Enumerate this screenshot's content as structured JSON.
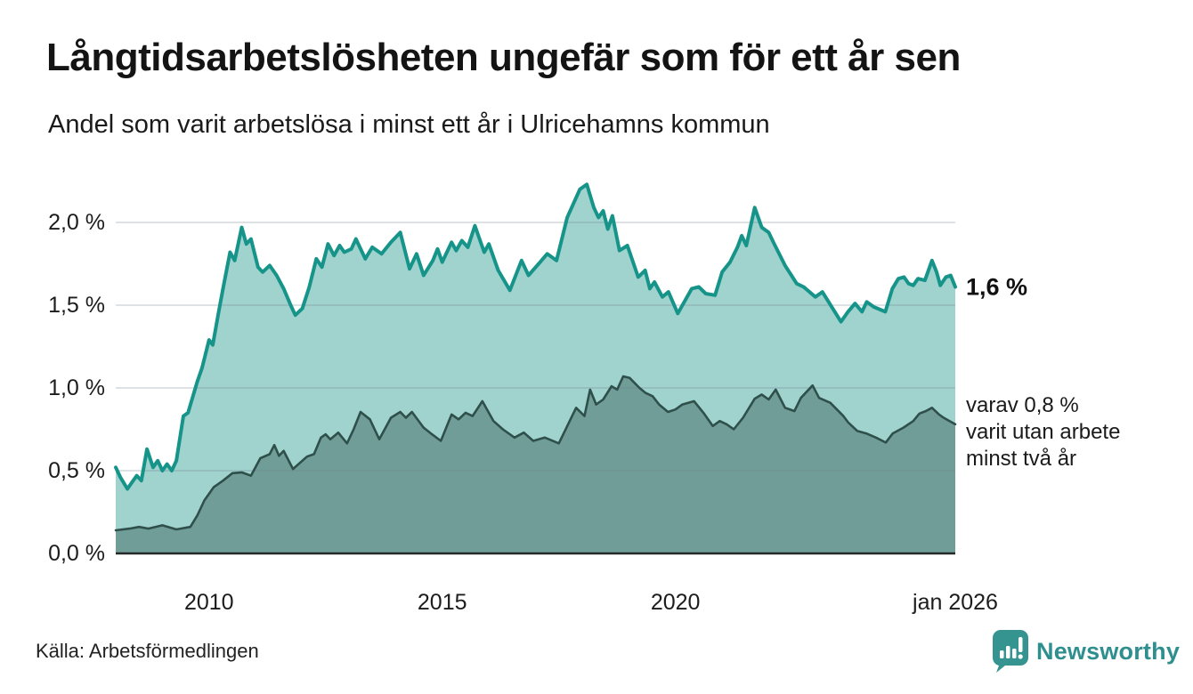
{
  "header": {
    "title": "Långtidsarbetslösheten ungefär som för ett år sen",
    "subtitle": "Andel som varit arbetslösa i minst ett år i Ulricehamns kommun"
  },
  "footer": {
    "source": "Källa: Arbetsförmedlingen",
    "logo_text": "Newsworthy"
  },
  "colors": {
    "accent_teal": "#17948A",
    "fill_light": "#A0D3CD",
    "fill_dark": "#709D98",
    "line_dark": "#2F4F4B",
    "gridline": "rgba(110,125,135,0.22)",
    "baseline": "#252A29",
    "logo_teal": "#2F8F8E"
  },
  "chart_data": {
    "type": "area",
    "title": "Långtidsarbetslösheten ungefär som för ett år sen",
    "subtitle": "Andel som varit arbetslösa i minst ett år i Ulricehamns kommun",
    "unit": "%",
    "xlim": [
      2008.0,
      2026.0
    ],
    "ylim": [
      0,
      2.3
    ],
    "grid": "horizontal",
    "x_ticks": [
      {
        "label": "2010",
        "x": 2010
      },
      {
        "label": "2015",
        "x": 2015
      },
      {
        "label": "2020",
        "x": 2020
      },
      {
        "label": "jan 2026",
        "x": 2026
      }
    ],
    "y_ticks": [
      {
        "label": "0,0 %",
        "value": 0.0
      },
      {
        "label": "0,5 %",
        "value": 0.5
      },
      {
        "label": "1,0 %",
        "value": 1.0
      },
      {
        "label": "1,5 %",
        "value": 1.5
      },
      {
        "label": "2,0 %",
        "value": 2.0
      }
    ],
    "annotations": [
      {
        "text": "1,6 %",
        "x": 2026.25,
        "y": 1.61,
        "style": "value"
      },
      {
        "text": "varav 0,8 %\nvarit utan arbete\nminst två år",
        "x": 2026.2,
        "y": 0.73,
        "style": "note"
      }
    ],
    "series": [
      {
        "name": "Andel arbetslösa minst ett år",
        "end_label": "1,6 %",
        "points": [
          [
            2008.0,
            0.52
          ],
          [
            2008.1,
            0.46
          ],
          [
            2008.25,
            0.39
          ],
          [
            2008.35,
            0.43
          ],
          [
            2008.45,
            0.47
          ],
          [
            2008.55,
            0.44
          ],
          [
            2008.67,
            0.63
          ],
          [
            2008.8,
            0.52
          ],
          [
            2008.9,
            0.56
          ],
          [
            2009.0,
            0.5
          ],
          [
            2009.1,
            0.54
          ],
          [
            2009.2,
            0.5
          ],
          [
            2009.3,
            0.56
          ],
          [
            2009.45,
            0.83
          ],
          [
            2009.55,
            0.85
          ],
          [
            2009.75,
            1.04
          ],
          [
            2009.85,
            1.12
          ],
          [
            2010.0,
            1.29
          ],
          [
            2010.08,
            1.26
          ],
          [
            2010.2,
            1.45
          ],
          [
            2010.3,
            1.6
          ],
          [
            2010.45,
            1.82
          ],
          [
            2010.55,
            1.77
          ],
          [
            2010.7,
            1.97
          ],
          [
            2010.8,
            1.87
          ],
          [
            2010.9,
            1.9
          ],
          [
            2011.05,
            1.73
          ],
          [
            2011.15,
            1.7
          ],
          [
            2011.3,
            1.74
          ],
          [
            2011.45,
            1.68
          ],
          [
            2011.6,
            1.6
          ],
          [
            2011.75,
            1.5
          ],
          [
            2011.85,
            1.44
          ],
          [
            2012.0,
            1.48
          ],
          [
            2012.15,
            1.61
          ],
          [
            2012.3,
            1.78
          ],
          [
            2012.42,
            1.73
          ],
          [
            2012.55,
            1.87
          ],
          [
            2012.68,
            1.8
          ],
          [
            2012.8,
            1.86
          ],
          [
            2012.9,
            1.82
          ],
          [
            2013.05,
            1.84
          ],
          [
            2013.15,
            1.9
          ],
          [
            2013.35,
            1.78
          ],
          [
            2013.5,
            1.85
          ],
          [
            2013.7,
            1.81
          ],
          [
            2013.9,
            1.88
          ],
          [
            2014.1,
            1.94
          ],
          [
            2014.3,
            1.72
          ],
          [
            2014.45,
            1.81
          ],
          [
            2014.6,
            1.68
          ],
          [
            2014.8,
            1.77
          ],
          [
            2014.9,
            1.84
          ],
          [
            2015.0,
            1.76
          ],
          [
            2015.2,
            1.88
          ],
          [
            2015.3,
            1.83
          ],
          [
            2015.42,
            1.89
          ],
          [
            2015.55,
            1.85
          ],
          [
            2015.7,
            1.98
          ],
          [
            2015.9,
            1.82
          ],
          [
            2016.0,
            1.87
          ],
          [
            2016.2,
            1.71
          ],
          [
            2016.45,
            1.59
          ],
          [
            2016.7,
            1.77
          ],
          [
            2016.85,
            1.68
          ],
          [
            2017.1,
            1.76
          ],
          [
            2017.25,
            1.81
          ],
          [
            2017.45,
            1.77
          ],
          [
            2017.68,
            2.03
          ],
          [
            2017.95,
            2.2
          ],
          [
            2018.1,
            2.23
          ],
          [
            2018.25,
            2.09
          ],
          [
            2018.35,
            2.03
          ],
          [
            2018.45,
            2.07
          ],
          [
            2018.55,
            1.96
          ],
          [
            2018.65,
            2.04
          ],
          [
            2018.8,
            1.83
          ],
          [
            2018.97,
            1.86
          ],
          [
            2019.2,
            1.67
          ],
          [
            2019.35,
            1.71
          ],
          [
            2019.45,
            1.6
          ],
          [
            2019.55,
            1.64
          ],
          [
            2019.72,
            1.55
          ],
          [
            2019.85,
            1.58
          ],
          [
            2020.05,
            1.45
          ],
          [
            2020.35,
            1.6
          ],
          [
            2020.5,
            1.61
          ],
          [
            2020.65,
            1.57
          ],
          [
            2020.85,
            1.56
          ],
          [
            2021.0,
            1.7
          ],
          [
            2021.17,
            1.76
          ],
          [
            2021.33,
            1.85
          ],
          [
            2021.42,
            1.92
          ],
          [
            2021.52,
            1.86
          ],
          [
            2021.7,
            2.09
          ],
          [
            2021.85,
            1.97
          ],
          [
            2022.0,
            1.94
          ],
          [
            2022.1,
            1.88
          ],
          [
            2022.35,
            1.74
          ],
          [
            2022.6,
            1.63
          ],
          [
            2022.75,
            1.61
          ],
          [
            2023.0,
            1.55
          ],
          [
            2023.15,
            1.58
          ],
          [
            2023.35,
            1.49
          ],
          [
            2023.55,
            1.4
          ],
          [
            2023.7,
            1.46
          ],
          [
            2023.85,
            1.51
          ],
          [
            2024.0,
            1.46
          ],
          [
            2024.1,
            1.52
          ],
          [
            2024.25,
            1.49
          ],
          [
            2024.5,
            1.46
          ],
          [
            2024.65,
            1.6
          ],
          [
            2024.78,
            1.66
          ],
          [
            2024.9,
            1.67
          ],
          [
            2025.0,
            1.63
          ],
          [
            2025.1,
            1.62
          ],
          [
            2025.2,
            1.66
          ],
          [
            2025.35,
            1.65
          ],
          [
            2025.5,
            1.77
          ],
          [
            2025.6,
            1.7
          ],
          [
            2025.68,
            1.62
          ],
          [
            2025.8,
            1.67
          ],
          [
            2025.9,
            1.68
          ],
          [
            2026.0,
            1.61
          ]
        ]
      },
      {
        "name": "varav arbetslösa minst två år",
        "end_label": "0,8 %",
        "points": [
          [
            2008.0,
            0.14
          ],
          [
            2008.3,
            0.15
          ],
          [
            2008.5,
            0.16
          ],
          [
            2008.7,
            0.15
          ],
          [
            2009.0,
            0.17
          ],
          [
            2009.3,
            0.145
          ],
          [
            2009.6,
            0.16
          ],
          [
            2009.75,
            0.23
          ],
          [
            2009.9,
            0.32
          ],
          [
            2010.1,
            0.4
          ],
          [
            2010.3,
            0.44
          ],
          [
            2010.5,
            0.485
          ],
          [
            2010.7,
            0.49
          ],
          [
            2010.9,
            0.47
          ],
          [
            2011.1,
            0.575
          ],
          [
            2011.3,
            0.6
          ],
          [
            2011.4,
            0.655
          ],
          [
            2011.5,
            0.59
          ],
          [
            2011.6,
            0.62
          ],
          [
            2011.8,
            0.51
          ],
          [
            2012.1,
            0.585
          ],
          [
            2012.25,
            0.6
          ],
          [
            2012.4,
            0.7
          ],
          [
            2012.5,
            0.72
          ],
          [
            2012.6,
            0.69
          ],
          [
            2012.77,
            0.73
          ],
          [
            2012.96,
            0.665
          ],
          [
            2013.1,
            0.75
          ],
          [
            2013.25,
            0.855
          ],
          [
            2013.45,
            0.81
          ],
          [
            2013.65,
            0.69
          ],
          [
            2013.9,
            0.82
          ],
          [
            2014.1,
            0.855
          ],
          [
            2014.22,
            0.82
          ],
          [
            2014.35,
            0.855
          ],
          [
            2014.6,
            0.76
          ],
          [
            2014.78,
            0.72
          ],
          [
            2014.97,
            0.68
          ],
          [
            2015.2,
            0.84
          ],
          [
            2015.35,
            0.81
          ],
          [
            2015.5,
            0.85
          ],
          [
            2015.65,
            0.83
          ],
          [
            2015.86,
            0.92
          ],
          [
            2016.1,
            0.8
          ],
          [
            2016.3,
            0.75
          ],
          [
            2016.55,
            0.7
          ],
          [
            2016.75,
            0.73
          ],
          [
            2016.95,
            0.68
          ],
          [
            2017.2,
            0.7
          ],
          [
            2017.5,
            0.665
          ],
          [
            2017.87,
            0.88
          ],
          [
            2018.05,
            0.83
          ],
          [
            2018.17,
            0.99
          ],
          [
            2018.3,
            0.9
          ],
          [
            2018.45,
            0.93
          ],
          [
            2018.63,
            1.01
          ],
          [
            2018.75,
            0.99
          ],
          [
            2018.88,
            1.07
          ],
          [
            2019.02,
            1.06
          ],
          [
            2019.23,
            1.0
          ],
          [
            2019.36,
            0.97
          ],
          [
            2019.51,
            0.95
          ],
          [
            2019.65,
            0.9
          ],
          [
            2019.84,
            0.855
          ],
          [
            2020.0,
            0.87
          ],
          [
            2020.15,
            0.9
          ],
          [
            2020.4,
            0.92
          ],
          [
            2020.6,
            0.85
          ],
          [
            2020.8,
            0.77
          ],
          [
            2020.95,
            0.8
          ],
          [
            2021.1,
            0.78
          ],
          [
            2021.25,
            0.75
          ],
          [
            2021.45,
            0.82
          ],
          [
            2021.7,
            0.935
          ],
          [
            2021.85,
            0.96
          ],
          [
            2022.0,
            0.93
          ],
          [
            2022.15,
            0.99
          ],
          [
            2022.35,
            0.88
          ],
          [
            2022.55,
            0.86
          ],
          [
            2022.69,
            0.94
          ],
          [
            2022.94,
            1.015
          ],
          [
            2023.08,
            0.94
          ],
          [
            2023.32,
            0.91
          ],
          [
            2023.6,
            0.83
          ],
          [
            2023.71,
            0.79
          ],
          [
            2023.9,
            0.74
          ],
          [
            2024.09,
            0.725
          ],
          [
            2024.3,
            0.7
          ],
          [
            2024.51,
            0.67
          ],
          [
            2024.66,
            0.725
          ],
          [
            2024.89,
            0.76
          ],
          [
            2025.1,
            0.8
          ],
          [
            2025.23,
            0.845
          ],
          [
            2025.37,
            0.86
          ],
          [
            2025.5,
            0.88
          ],
          [
            2025.65,
            0.84
          ],
          [
            2025.75,
            0.82
          ],
          [
            2026.0,
            0.78
          ]
        ]
      }
    ]
  }
}
